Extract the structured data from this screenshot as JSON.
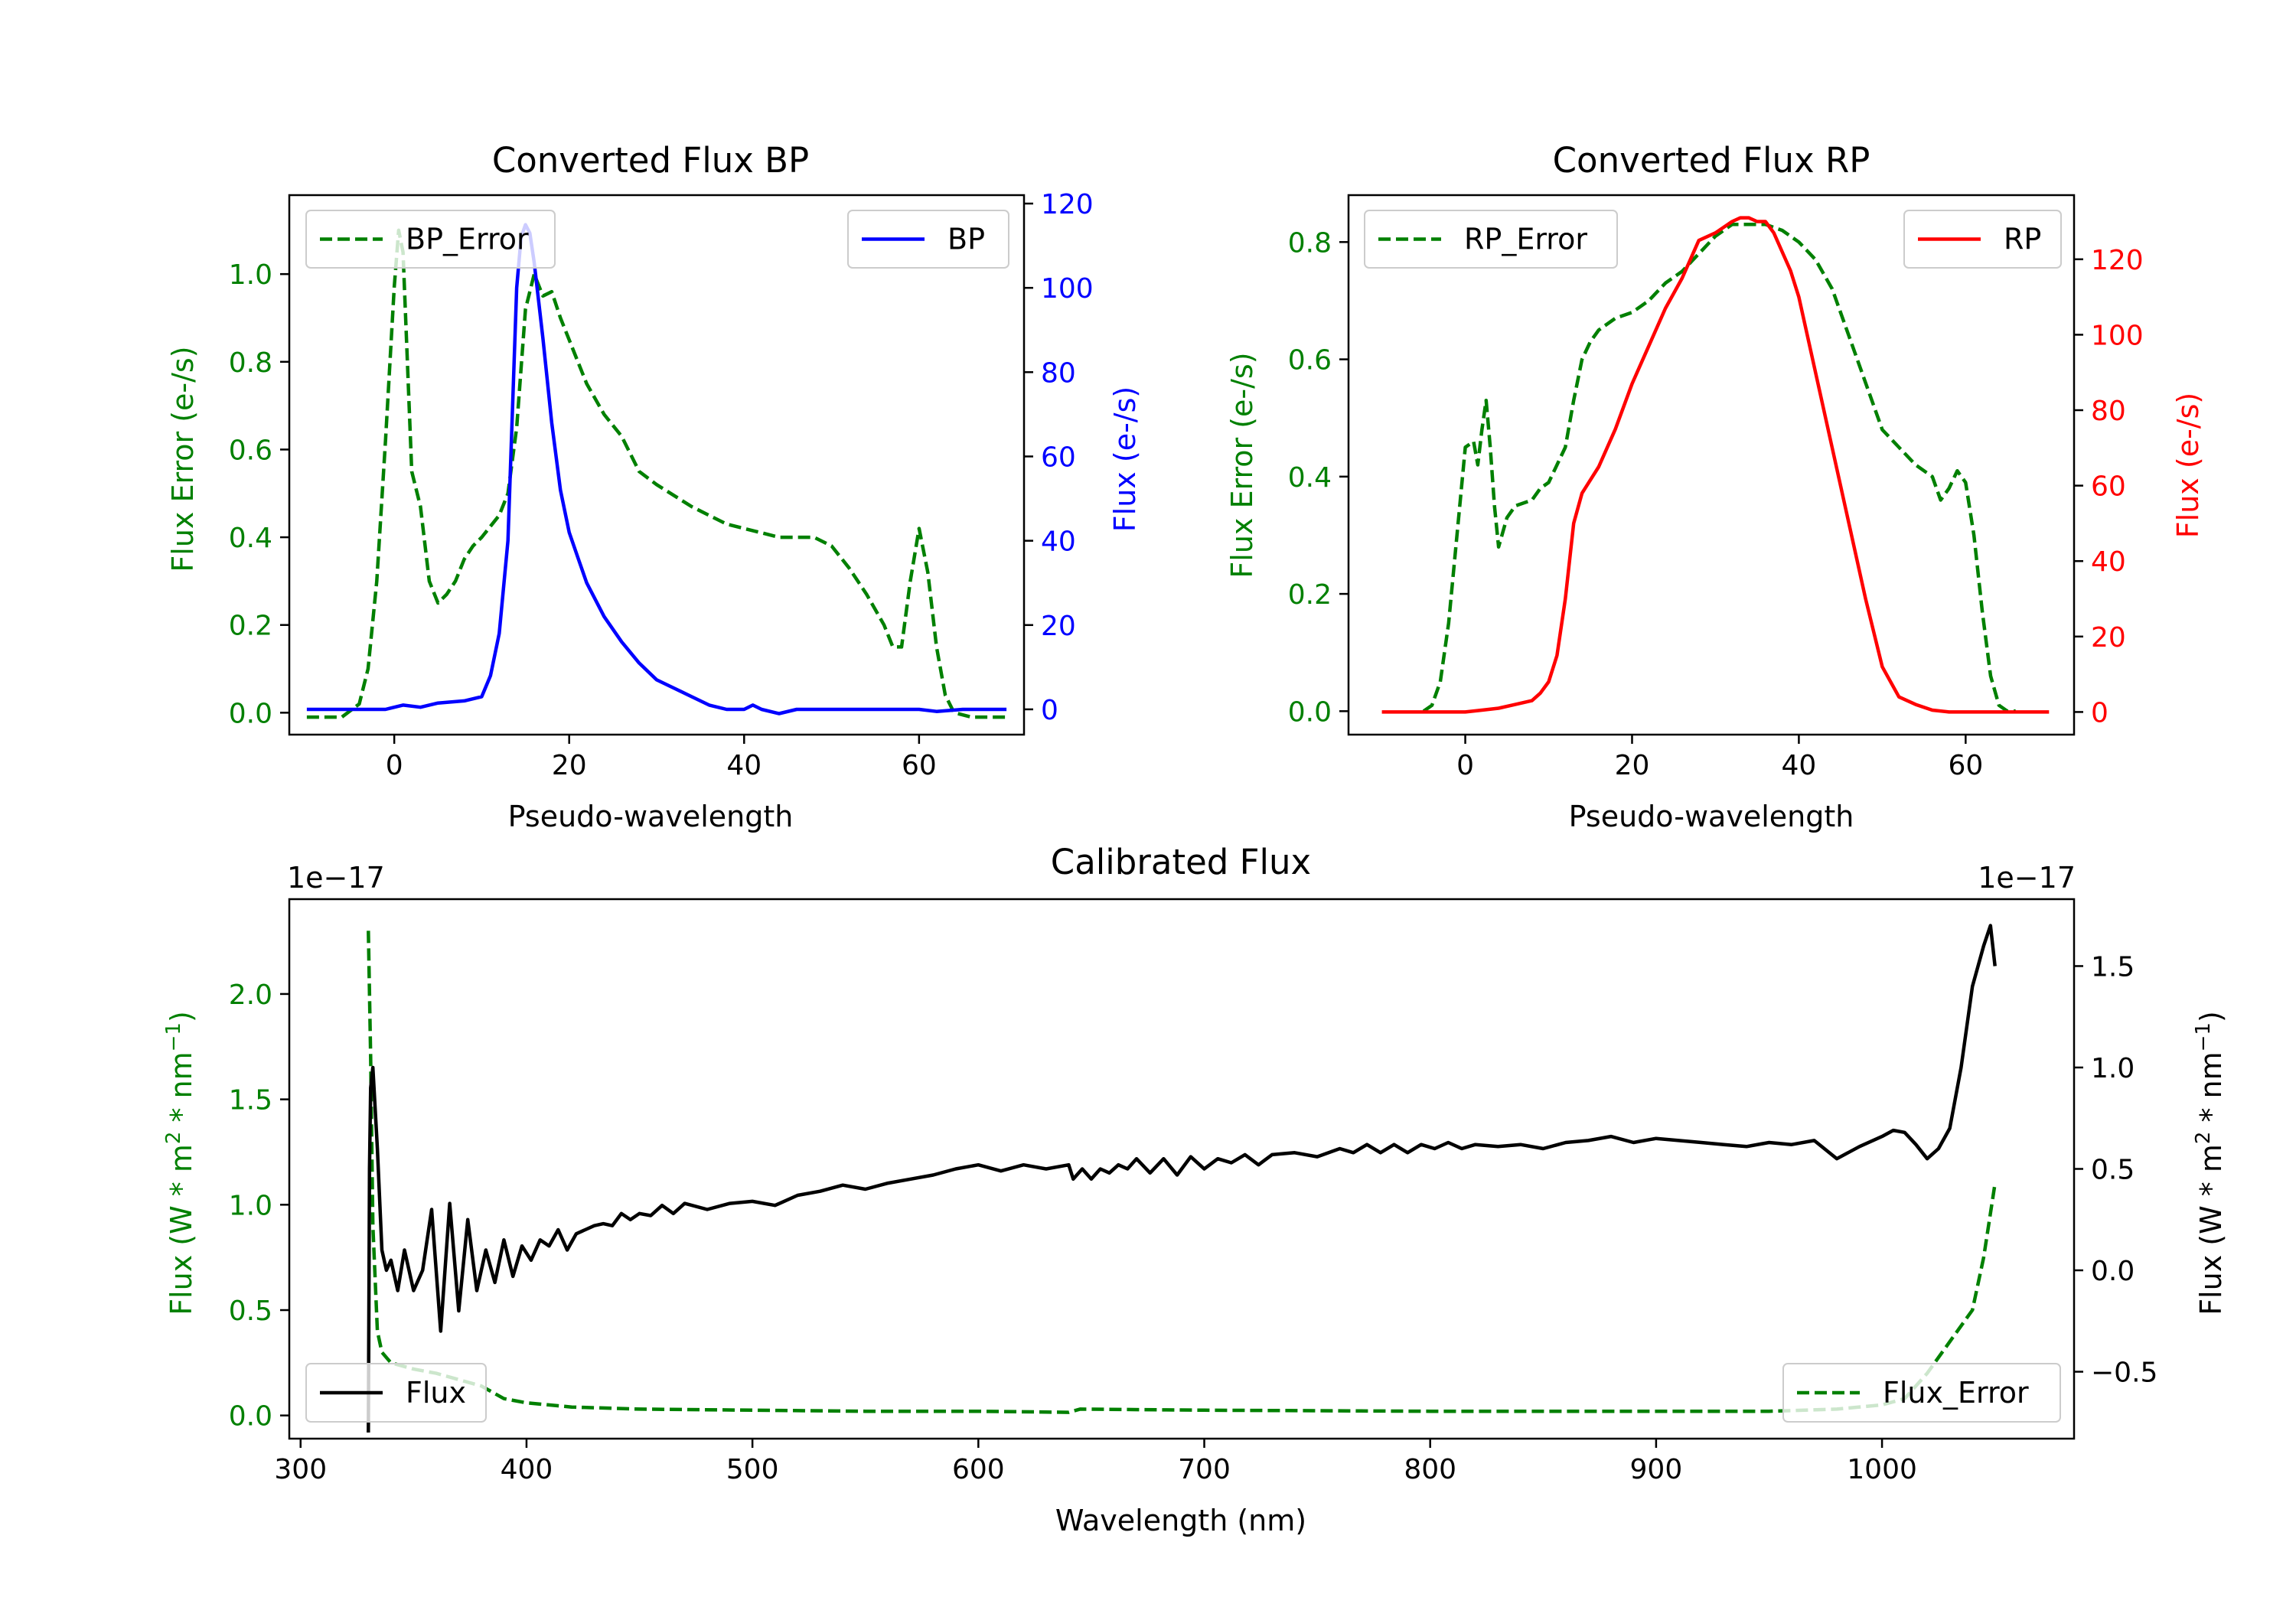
{
  "chart_data": [
    {
      "id": "bp",
      "type": "line",
      "title": "Converted Flux BP",
      "xlabel": "Pseudo-wavelength",
      "xlim": [
        -12,
        72
      ],
      "xticks": [
        0,
        20,
        40,
        60
      ],
      "left_axis": {
        "label": "Flux Error (e-/s)",
        "color": "#008000",
        "lim": [
          -0.05,
          1.18
        ],
        "ticks": [
          0.0,
          0.2,
          0.4,
          0.6,
          0.8,
          1.0
        ],
        "tick_labels": [
          "0.0",
          "0.2",
          "0.4",
          "0.6",
          "0.8",
          "1.0"
        ]
      },
      "right_axis": {
        "label": "Flux (e-/s)",
        "color": "#0000ff",
        "lim": [
          -6,
          122
        ],
        "ticks": [
          0,
          20,
          40,
          60,
          80,
          100,
          120
        ],
        "tick_labels": [
          "0",
          "20",
          "40",
          "60",
          "80",
          "100",
          "120"
        ]
      },
      "series": [
        {
          "name": "BP_Error",
          "axis": "left",
          "style": "dashed",
          "color": "#008000",
          "x": [
            -10,
            -6,
            -4,
            -3,
            -2,
            -1,
            0,
            0.5,
            1,
            1.5,
            2,
            3,
            4,
            5,
            6,
            7,
            8,
            9,
            10,
            12,
            13,
            14,
            15,
            16,
            17,
            18,
            19,
            20,
            21,
            22,
            24,
            26,
            28,
            30,
            34,
            38,
            42,
            44,
            48,
            50,
            52,
            54,
            56,
            57,
            58,
            59,
            60,
            61,
            62,
            63,
            64,
            66,
            70
          ],
          "y": [
            -0.01,
            -0.01,
            0.02,
            0.1,
            0.3,
            0.62,
            0.97,
            1.1,
            1.05,
            0.8,
            0.55,
            0.47,
            0.3,
            0.25,
            0.27,
            0.3,
            0.35,
            0.38,
            0.4,
            0.45,
            0.5,
            0.65,
            0.92,
            1.0,
            0.95,
            0.96,
            0.9,
            0.85,
            0.8,
            0.75,
            0.68,
            0.63,
            0.55,
            0.52,
            0.47,
            0.43,
            0.41,
            0.4,
            0.4,
            0.38,
            0.33,
            0.27,
            0.2,
            0.15,
            0.15,
            0.3,
            0.42,
            0.32,
            0.15,
            0.04,
            0.0,
            -0.01,
            -0.01
          ]
        },
        {
          "name": "BP",
          "axis": "right",
          "style": "solid",
          "color": "#0000ff",
          "x": [
            -10,
            -5,
            -1,
            1,
            3,
            5,
            8,
            10,
            11,
            12,
            13,
            13.5,
            14,
            14.5,
            15,
            15.5,
            16,
            17,
            18,
            19,
            20,
            21,
            22,
            24,
            26,
            28,
            30,
            32,
            34,
            36,
            38,
            40,
            41,
            42,
            44,
            46,
            50,
            55,
            60,
            62,
            65,
            70
          ],
          "y": [
            0,
            0,
            0,
            1,
            0.5,
            1.5,
            2,
            3,
            8,
            18,
            40,
            70,
            100,
            112,
            115,
            113,
            106,
            88,
            68,
            52,
            42,
            36,
            30,
            22,
            16,
            11,
            7,
            5,
            3,
            1,
            0,
            0,
            1,
            0,
            -1,
            0,
            0,
            0,
            0,
            -0.5,
            0,
            0
          ]
        }
      ],
      "legends": [
        {
          "items": [
            {
              "label": "BP_Error",
              "style": "dashed",
              "color": "#008000"
            }
          ],
          "loc": "upper left"
        },
        {
          "items": [
            {
              "label": "BP",
              "style": "solid",
              "color": "#0000ff"
            }
          ],
          "loc": "upper right"
        }
      ]
    },
    {
      "id": "rp",
      "type": "line",
      "title": "Converted Flux RP",
      "xlabel": "Pseudo-wavelength",
      "xlim": [
        -14,
        73
      ],
      "xticks": [
        0,
        20,
        40,
        60
      ],
      "left_axis": {
        "label": "Flux Error (e-/s)",
        "color": "#008000",
        "lim": [
          -0.04,
          0.88
        ],
        "ticks": [
          0.0,
          0.2,
          0.4,
          0.6,
          0.8
        ],
        "tick_labels": [
          "0.0",
          "0.2",
          "0.4",
          "0.6",
          "0.8"
        ]
      },
      "right_axis": {
        "label": "Flux (e-/s)",
        "color": "#ff0000",
        "lim": [
          -6,
          137
        ],
        "ticks": [
          0,
          20,
          40,
          60,
          80,
          100,
          120
        ],
        "tick_labels": [
          "0",
          "20",
          "40",
          "60",
          "80",
          "100",
          "120"
        ]
      },
      "series": [
        {
          "name": "RP_Error",
          "axis": "left",
          "style": "dashed",
          "color": "#008000",
          "x": [
            -5,
            -4,
            -3,
            -2,
            -1,
            0,
            1,
            1.5,
            2,
            2.5,
            3,
            3.5,
            4,
            5,
            6,
            8,
            9,
            10,
            12,
            13,
            14,
            15,
            16,
            18,
            20,
            22,
            24,
            26,
            28,
            30,
            32,
            34,
            36,
            38,
            40,
            42,
            44,
            46,
            48,
            50,
            52,
            54,
            55,
            56,
            57,
            58,
            59,
            60,
            61,
            62,
            63,
            64,
            65,
            66
          ],
          "y": [
            0,
            0.01,
            0.05,
            0.15,
            0.3,
            0.45,
            0.46,
            0.42,
            0.48,
            0.53,
            0.45,
            0.35,
            0.28,
            0.33,
            0.35,
            0.36,
            0.38,
            0.39,
            0.45,
            0.53,
            0.6,
            0.63,
            0.65,
            0.67,
            0.68,
            0.7,
            0.73,
            0.75,
            0.78,
            0.81,
            0.83,
            0.83,
            0.83,
            0.82,
            0.8,
            0.77,
            0.72,
            0.64,
            0.56,
            0.48,
            0.45,
            0.42,
            0.41,
            0.4,
            0.36,
            0.38,
            0.41,
            0.39,
            0.3,
            0.17,
            0.06,
            0.01,
            0,
            0
          ]
        },
        {
          "name": "RP",
          "axis": "right",
          "style": "solid",
          "color": "#ff0000",
          "x": [
            -10,
            -5,
            0,
            2,
            4,
            6,
            8,
            9,
            10,
            11,
            12,
            13,
            14,
            16,
            18,
            20,
            22,
            24,
            26,
            28,
            30,
            32,
            33,
            34,
            35,
            36,
            37,
            38,
            39,
            40,
            41,
            42,
            44,
            46,
            48,
            50,
            52,
            54,
            56,
            58,
            60,
            65,
            70
          ],
          "y": [
            0,
            0,
            0,
            0.5,
            1,
            2,
            3,
            5,
            8,
            15,
            30,
            50,
            58,
            65,
            75,
            87,
            97,
            107,
            115,
            125,
            127,
            130,
            131,
            131,
            130,
            130,
            127,
            122,
            117,
            110,
            100,
            90,
            70,
            50,
            30,
            12,
            4,
            2,
            0.5,
            0,
            0,
            0,
            0
          ]
        }
      ],
      "legends": [
        {
          "items": [
            {
              "label": "RP_Error",
              "style": "dashed",
              "color": "#008000"
            }
          ],
          "loc": "upper left"
        },
        {
          "items": [
            {
              "label": "RP",
              "style": "solid",
              "color": "#ff0000"
            }
          ],
          "loc": "upper right"
        }
      ]
    },
    {
      "id": "cal",
      "type": "line",
      "title": "Calibrated Flux",
      "xlabel": "Wavelength (nm)",
      "xlim": [
        295,
        1085
      ],
      "xticks": [
        300,
        400,
        500,
        600,
        700,
        800,
        900,
        1000
      ],
      "left_axis": {
        "label": "Flux (W * m<sup>2</sup> * nm<sup>−1</sup>)",
        "color": "#008000",
        "lim": [
          -0.11,
          2.45
        ],
        "ticks": [
          0.0,
          0.5,
          1.0,
          1.5,
          2.0
        ],
        "tick_labels": [
          "0.0",
          "0.5",
          "1.0",
          "1.5",
          "2.0"
        ],
        "offset": "1e−17"
      },
      "right_axis": {
        "label": "Flux (W * m<sup>2</sup> * nm<sup>−1</sup>)",
        "color": "#000000",
        "lim": [
          -0.83,
          1.83
        ],
        "ticks": [
          -0.5,
          0.0,
          0.5,
          1.0,
          1.5
        ],
        "tick_labels": [
          "−0.5",
          "0.0",
          "0.5",
          "1.0",
          "1.5"
        ],
        "offset": "1e−17"
      },
      "series": [
        {
          "name": "Flux_Error",
          "axis": "left",
          "style": "dashed",
          "color": "#008000",
          "x": [
            330,
            331,
            332,
            334,
            336,
            340,
            350,
            360,
            370,
            380,
            390,
            400,
            420,
            450,
            500,
            550,
            600,
            640,
            645,
            700,
            800,
            900,
            950,
            980,
            1000,
            1010,
            1020,
            1030,
            1040,
            1045,
            1050
          ],
          "y": [
            2.3,
            1.7,
            0.9,
            0.4,
            0.3,
            0.25,
            0.22,
            0.2,
            0.17,
            0.14,
            0.08,
            0.06,
            0.04,
            0.03,
            0.025,
            0.02,
            0.02,
            0.015,
            0.03,
            0.025,
            0.02,
            0.02,
            0.02,
            0.03,
            0.05,
            0.08,
            0.2,
            0.35,
            0.5,
            0.75,
            1.1
          ]
        },
        {
          "name": "Flux",
          "axis": "right",
          "style": "solid",
          "color": "#000000",
          "x": [
            330,
            330.5,
            331,
            332,
            334,
            336,
            338,
            340,
            343,
            346,
            350,
            354,
            358,
            362,
            366,
            370,
            374,
            378,
            382,
            386,
            390,
            394,
            398,
            402,
            406,
            410,
            414,
            418,
            422,
            426,
            430,
            434,
            438,
            442,
            446,
            450,
            455,
            460,
            465,
            470,
            480,
            490,
            500,
            510,
            520,
            530,
            540,
            550,
            560,
            570,
            580,
            590,
            600,
            610,
            620,
            630,
            640,
            642,
            646,
            650,
            654,
            658,
            662,
            666,
            670,
            676,
            682,
            688,
            694,
            700,
            706,
            712,
            718,
            724,
            730,
            740,
            750,
            760,
            766,
            772,
            778,
            784,
            790,
            796,
            802,
            808,
            814,
            820,
            830,
            840,
            850,
            860,
            870,
            880,
            890,
            900,
            910,
            920,
            930,
            940,
            950,
            960,
            970,
            980,
            990,
            1000,
            1005,
            1010,
            1015,
            1020,
            1025,
            1030,
            1035,
            1040,
            1045,
            1048,
            1050
          ],
          "y": [
            -0.8,
            0.5,
            0.9,
            1.0,
            0.6,
            0.1,
            0.0,
            0.05,
            -0.1,
            0.1,
            -0.1,
            0.0,
            0.3,
            -0.3,
            0.33,
            -0.2,
            0.25,
            -0.1,
            0.1,
            -0.06,
            0.15,
            -0.03,
            0.12,
            0.05,
            0.15,
            0.12,
            0.2,
            0.1,
            0.18,
            0.2,
            0.22,
            0.23,
            0.22,
            0.28,
            0.25,
            0.28,
            0.27,
            0.32,
            0.28,
            0.33,
            0.3,
            0.33,
            0.34,
            0.32,
            0.37,
            0.39,
            0.42,
            0.4,
            0.43,
            0.45,
            0.47,
            0.5,
            0.52,
            0.49,
            0.52,
            0.5,
            0.52,
            0.45,
            0.5,
            0.45,
            0.5,
            0.48,
            0.52,
            0.5,
            0.55,
            0.48,
            0.55,
            0.47,
            0.56,
            0.5,
            0.55,
            0.53,
            0.57,
            0.52,
            0.57,
            0.58,
            0.56,
            0.6,
            0.58,
            0.62,
            0.58,
            0.62,
            0.58,
            0.62,
            0.6,
            0.63,
            0.6,
            0.62,
            0.61,
            0.62,
            0.6,
            0.63,
            0.64,
            0.66,
            0.63,
            0.65,
            0.64,
            0.63,
            0.62,
            0.61,
            0.63,
            0.62,
            0.64,
            0.55,
            0.61,
            0.66,
            0.69,
            0.68,
            0.62,
            0.55,
            0.6,
            0.7,
            1.0,
            1.4,
            1.6,
            1.7,
            1.5
          ]
        }
      ],
      "legends": [
        {
          "items": [
            {
              "label": "Flux",
              "style": "solid",
              "color": "#000000"
            }
          ],
          "loc": "lower left"
        },
        {
          "items": [
            {
              "label": "Flux_Error",
              "style": "dashed",
              "color": "#008000"
            }
          ],
          "loc": "lower right"
        }
      ]
    }
  ]
}
